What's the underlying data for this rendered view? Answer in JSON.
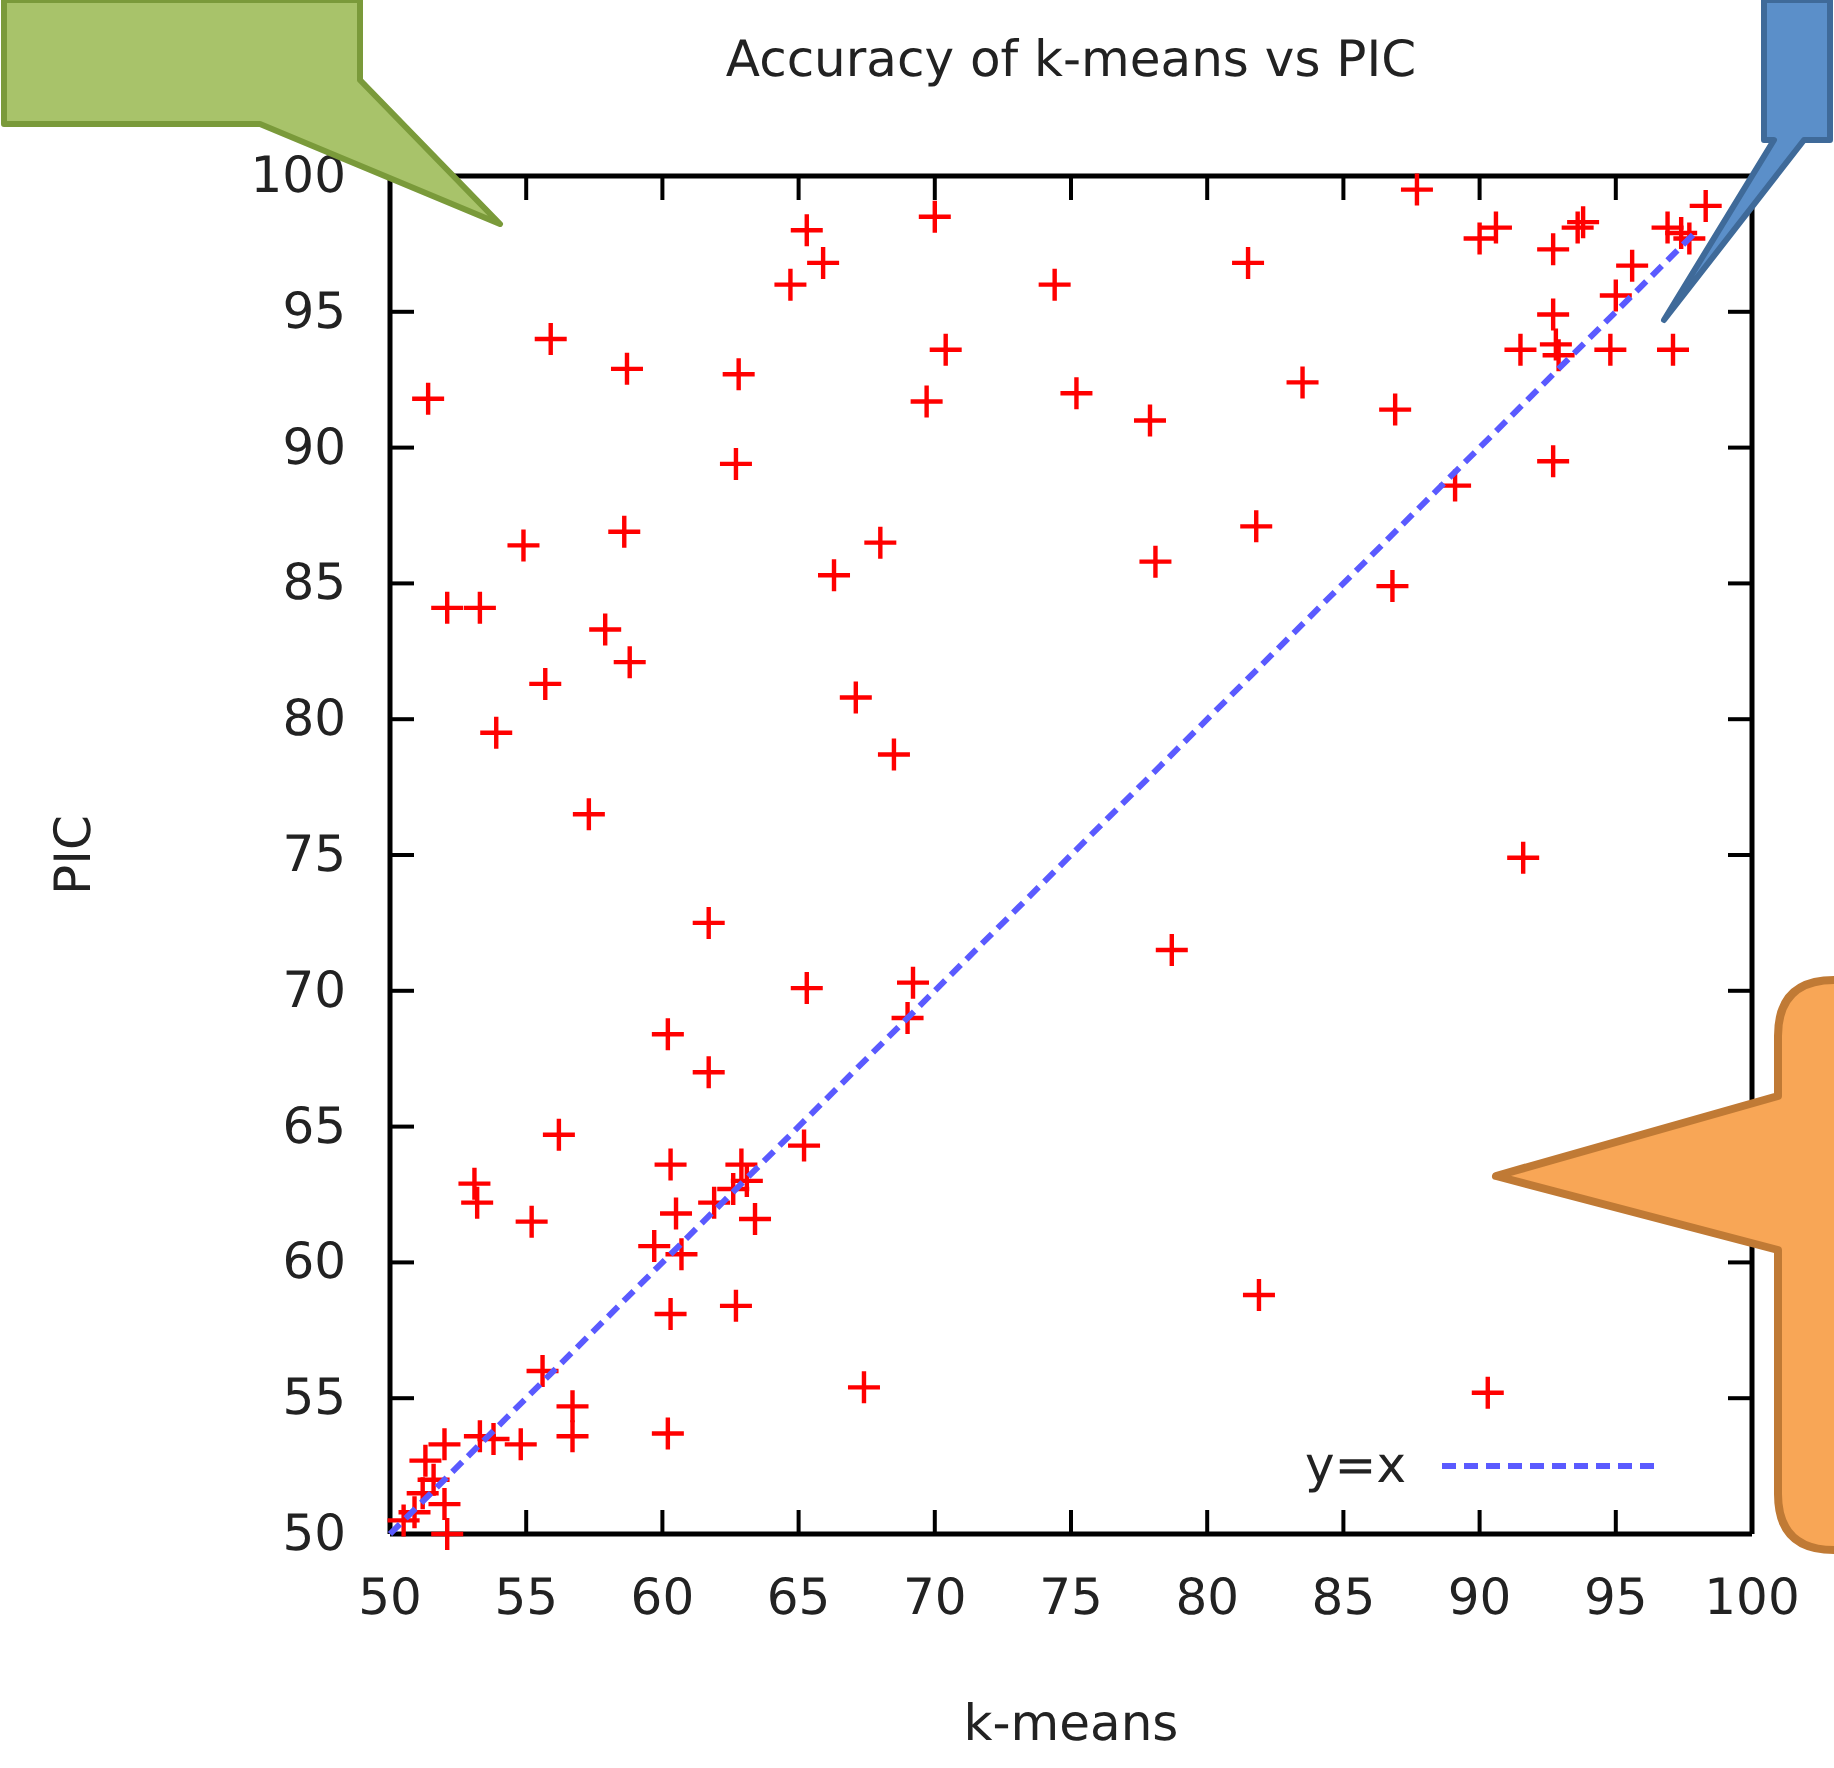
{
  "chart_data": {
    "type": "scatter",
    "title": "Accuracy of k-means vs PIC",
    "xlabel": "k-means",
    "ylabel": "PIC",
    "xlim": [
      50,
      100
    ],
    "ylim": [
      50,
      100
    ],
    "xticks": [
      50,
      55,
      60,
      65,
      70,
      75,
      80,
      85,
      90,
      95,
      100
    ],
    "yticks": [
      50,
      55,
      60,
      65,
      70,
      75,
      80,
      85,
      90,
      95,
      100
    ],
    "legend": "bottom right",
    "series": [
      {
        "marker": "cross",
        "color": "#ff0000",
        "x": [
          65.3,
          65.9,
          64.7,
          70.0,
          74.4,
          55.9,
          58.7,
          62.8,
          70.4,
          69.7,
          51.4,
          62.7,
          54.9,
          58.6,
          68.0,
          66.3,
          52.1,
          53.3,
          57.9,
          58.8,
          55.7,
          67.1,
          53.9,
          68.5,
          57.3,
          61.7,
          65.3,
          69.2,
          69.0,
          60.2,
          61.7,
          87.7,
          98.3,
          90.0,
          90.6,
          92.7,
          93.6,
          93.8,
          96.9,
          97.7,
          97.4,
          81.5,
          95.6,
          95.0,
          92.7,
          92.8,
          91.5,
          92.9,
          94.8,
          97.1,
          75.2,
          77.9,
          83.5,
          86.9,
          92.7,
          89.1,
          81.8,
          78.1,
          86.8,
          91.6,
          78.7,
          81.9,
          90.3,
          56.2,
          60.3,
          62.9,
          65.2,
          53.1,
          53.2,
          55.2,
          60.5,
          61.9,
          62.6,
          63.1,
          63.4,
          59.7,
          60.7,
          60.3,
          62.7,
          67.4,
          55.6,
          56.7,
          56.7,
          60.2,
          53.3,
          53.8,
          54.8,
          52.0,
          51.3,
          51.6,
          52.0,
          50.9,
          50.5,
          52.1,
          51.2
        ],
        "values": [
          98.0,
          96.8,
          96.0,
          98.5,
          96.0,
          94.0,
          92.9,
          92.7,
          93.6,
          91.7,
          91.8,
          89.4,
          86.4,
          86.9,
          86.5,
          85.3,
          84.1,
          84.1,
          83.3,
          82.1,
          81.3,
          80.8,
          79.5,
          78.7,
          76.5,
          72.5,
          70.1,
          70.3,
          69.0,
          68.4,
          67.0,
          99.5,
          98.9,
          97.7,
          98.1,
          97.3,
          98.1,
          98.3,
          98.1,
          97.7,
          97.9,
          96.8,
          96.7,
          95.6,
          94.9,
          93.8,
          93.6,
          93.4,
          93.6,
          93.6,
          92.0,
          91.0,
          92.4,
          91.4,
          89.5,
          88.6,
          87.1,
          85.8,
          84.9,
          74.9,
          71.5,
          58.8,
          55.2,
          64.7,
          63.6,
          63.6,
          64.3,
          62.9,
          62.2,
          61.5,
          61.8,
          62.2,
          62.7,
          63.0,
          61.6,
          60.6,
          60.3,
          58.1,
          58.4,
          55.4,
          56.0,
          54.7,
          53.6,
          53.7,
          53.6,
          53.5,
          53.3,
          53.3,
          52.7,
          52.0,
          51.1,
          50.8,
          50.5,
          50.0,
          51.5
        ]
      },
      {
        "type": "line",
        "name": "y=x",
        "color": "#5a5aff",
        "line_style": "dashed",
        "x": [
          50,
          98
        ],
        "values": [
          50,
          98
        ]
      }
    ]
  }
}
